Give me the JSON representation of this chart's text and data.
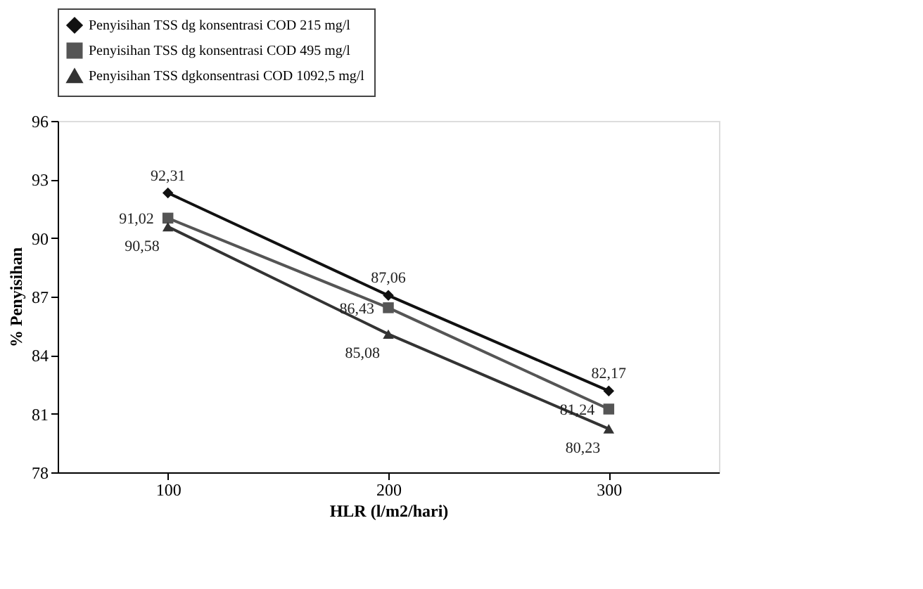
{
  "chart_data": {
    "type": "line",
    "xlabel": "HLR (l/m2/hari)",
    "ylabel": "% Penyisihan",
    "categories": [
      "100",
      "200",
      "300"
    ],
    "ylim": [
      78,
      96
    ],
    "yticks": [
      78,
      81,
      84,
      87,
      90,
      93,
      96
    ],
    "grid": false,
    "legend": "top",
    "line_style": "solid",
    "series": [
      {
        "name": "Penyisihan TSS dg konsentrasi COD 215 mg/l",
        "color": "#111111",
        "marker": "diamond",
        "values": [
          92.31,
          87.06,
          82.17
        ],
        "value_labels": [
          "92,31",
          "87,06",
          "82,17"
        ]
      },
      {
        "name": "Penyisihan TSS dg konsentrasi COD 495 mg/l",
        "color": "#555555",
        "marker": "square",
        "values": [
          91.02,
          86.43,
          81.24
        ],
        "value_labels": [
          "91,02",
          "86,43",
          "81,24"
        ]
      },
      {
        "name": "Penyisihan TSS dgkonsentrasi COD 1092,5 mg/l",
        "color": "#333333",
        "marker": "triangle",
        "values": [
          90.58,
          85.08,
          80.23
        ],
        "value_labels": [
          "90,58",
          "85,08",
          "80,23"
        ]
      }
    ]
  }
}
